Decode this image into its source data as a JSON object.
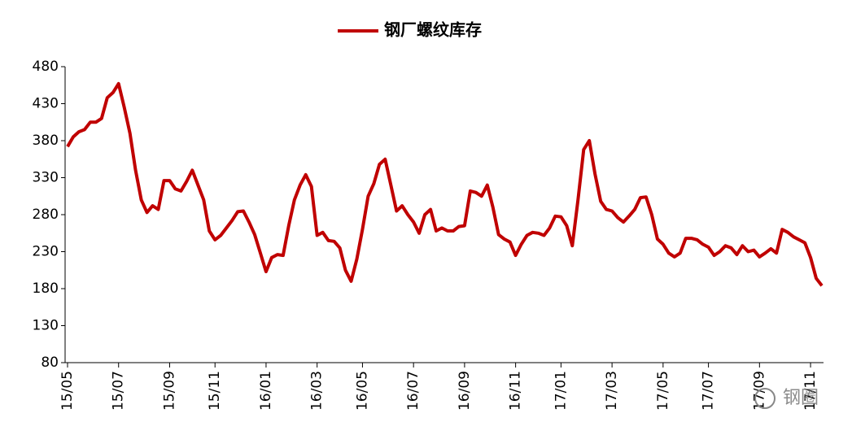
{
  "chart_data": {
    "type": "line",
    "watermark": "钢圈",
    "categories": [
      "15/05",
      null,
      null,
      null,
      null,
      null,
      null,
      null,
      null,
      "15/07",
      null,
      null,
      null,
      null,
      null,
      null,
      null,
      null,
      "15/09",
      null,
      null,
      null,
      null,
      null,
      null,
      null,
      "15/11",
      null,
      null,
      null,
      null,
      null,
      null,
      null,
      null,
      "16/01",
      null,
      null,
      null,
      null,
      null,
      null,
      null,
      null,
      "16/03",
      null,
      null,
      null,
      null,
      null,
      null,
      null,
      "16/05",
      null,
      null,
      null,
      null,
      null,
      null,
      null,
      null,
      "16/07",
      null,
      null,
      null,
      null,
      null,
      null,
      null,
      null,
      "16/09",
      null,
      null,
      null,
      null,
      null,
      null,
      null,
      null,
      "16/11",
      null,
      null,
      null,
      null,
      null,
      null,
      null,
      "17/01",
      null,
      null,
      null,
      null,
      null,
      null,
      null,
      null,
      "17/03",
      null,
      null,
      null,
      null,
      null,
      null,
      null,
      null,
      "17/05",
      null,
      null,
      null,
      null,
      null,
      null,
      null,
      "17/07",
      null,
      null,
      null,
      null,
      null,
      null,
      null,
      null,
      "17/09",
      null,
      null,
      null,
      null,
      null,
      null,
      null,
      null,
      "17/11",
      null,
      null
    ],
    "series": [
      {
        "name": "钢厂螺纹库存",
        "color": "#c00000",
        "values": [
          372,
          385,
          392,
          395,
          405,
          405,
          410,
          438,
          445,
          457,
          425,
          390,
          340,
          300,
          283,
          292,
          287,
          326,
          326,
          315,
          312,
          325,
          340,
          320,
          300,
          258,
          246,
          252,
          262,
          272,
          284,
          285,
          270,
          253,
          228,
          203,
          222,
          226,
          225,
          265,
          300,
          320,
          334,
          318,
          252,
          256,
          245,
          244,
          235,
          205,
          190,
          220,
          260,
          305,
          322,
          348,
          355,
          320,
          285,
          292,
          280,
          270,
          255,
          280,
          287,
          258,
          262,
          258,
          258,
          264,
          265,
          312,
          310,
          305,
          320,
          290,
          253,
          247,
          243,
          225,
          240,
          252,
          256,
          255,
          252,
          262,
          278,
          277,
          265,
          238,
          300,
          368,
          380,
          335,
          298,
          287,
          285,
          276,
          270,
          278,
          287,
          303,
          304,
          280,
          247,
          240,
          228,
          223,
          228,
          248,
          248,
          246,
          240,
          236,
          225,
          230,
          238,
          235,
          226,
          238,
          230,
          232,
          223,
          228,
          234,
          228,
          260,
          256,
          250,
          246,
          242,
          222,
          194,
          184
        ]
      }
    ],
    "ylim": [
      80,
      480
    ],
    "yticks": [
      80,
      130,
      180,
      230,
      280,
      330,
      380,
      430,
      480
    ],
    "legend": "top"
  }
}
